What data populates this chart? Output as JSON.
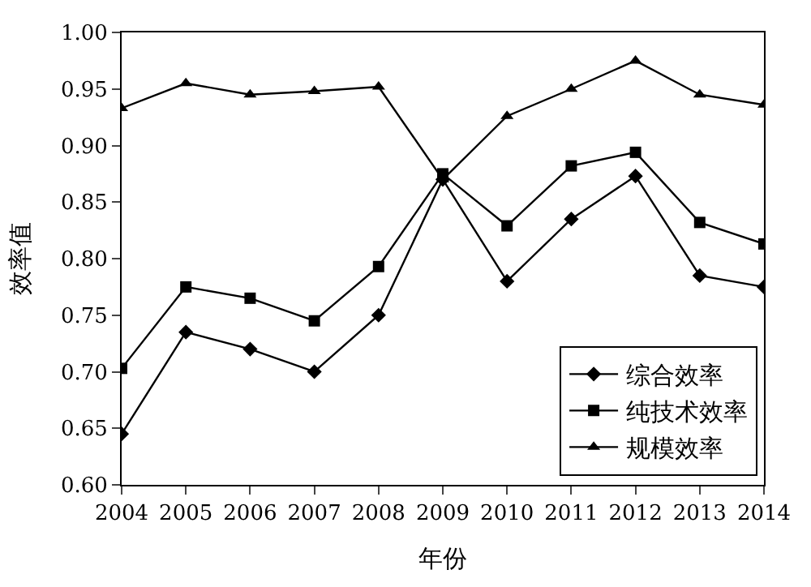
{
  "chart_data": {
    "type": "line",
    "xlabel": "年份",
    "ylabel": "效率值",
    "x": [
      2004,
      2005,
      2006,
      2007,
      2008,
      2009,
      2010,
      2011,
      2012,
      2013,
      2014
    ],
    "xlim": [
      2004,
      2014
    ],
    "xticks": [
      2004,
      2005,
      2006,
      2007,
      2008,
      2009,
      2010,
      2011,
      2012,
      2013,
      2014
    ],
    "ylim": [
      0.6,
      1.0
    ],
    "yticks": [
      {
        "value": 0.6,
        "label": "0.60"
      },
      {
        "value": 0.65,
        "label": "0.65"
      },
      {
        "value": 0.7,
        "label": "0.70"
      },
      {
        "value": 0.75,
        "label": "0.75"
      },
      {
        "value": 0.8,
        "label": "0.80"
      },
      {
        "value": 0.85,
        "label": "0.85"
      },
      {
        "value": 0.9,
        "label": "0.90"
      },
      {
        "value": 0.95,
        "label": "0.95"
      },
      {
        "value": 1.0,
        "label": "1.00"
      }
    ],
    "legend": "bottom right",
    "line_style": "solid",
    "series": [
      {
        "name": "综合效率",
        "color": "#000000",
        "marker": "diamond",
        "values": [
          0.645,
          0.735,
          0.72,
          0.7,
          0.75,
          0.87,
          0.78,
          0.835,
          0.873,
          0.785,
          0.775
        ]
      },
      {
        "name": "纯技术效率",
        "color": "#000000",
        "marker": "square",
        "values": [
          0.703,
          0.775,
          0.765,
          0.745,
          0.793,
          0.875,
          0.829,
          0.882,
          0.894,
          0.832,
          0.813
        ]
      },
      {
        "name": "规模效率",
        "color": "#000000",
        "marker": "triangle",
        "values": [
          0.933,
          0.955,
          0.945,
          0.948,
          0.952,
          0.87,
          0.926,
          0.95,
          0.975,
          0.945,
          0.936
        ]
      }
    ]
  }
}
